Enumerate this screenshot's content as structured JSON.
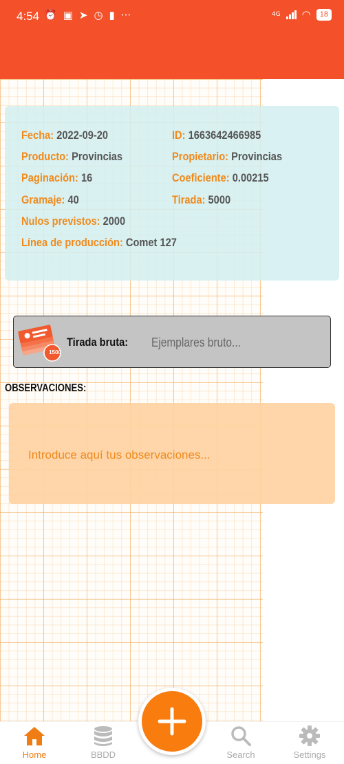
{
  "status_bar": {
    "time": "4:54",
    "network": "4G",
    "battery": "18"
  },
  "info": {
    "fecha": {
      "label": "Fecha:",
      "value": "2022-09-20"
    },
    "id": {
      "label": "ID:",
      "value": "1663642466985"
    },
    "producto": {
      "label": "Producto:",
      "value": "Provincias"
    },
    "propietario": {
      "label": "Propietario:",
      "value": "Provincias"
    },
    "paginacion": {
      "label": "Paginación:",
      "value": "16"
    },
    "coeficiente": {
      "label": "Coeficiente:",
      "value": "0.00215"
    },
    "gramaje": {
      "label": "Gramaje:",
      "value": "40"
    },
    "tirada": {
      "label": "Tirada:",
      "value": "5000"
    },
    "nulos": {
      "label": "Nulos previstos:",
      "value": "2000"
    },
    "linea": {
      "label": "Línea de producción:",
      "value": "Comet 127"
    }
  },
  "bruta": {
    "badge": "1500",
    "label": "Tirada bruta:",
    "placeholder": "Ejemplares bruto..."
  },
  "observaciones": {
    "title": "OBSERVACIONES:",
    "placeholder": "Introduce aquí tus observaciones..."
  },
  "nav": {
    "home": "Home",
    "bbdd": "BBDD",
    "search": "Search",
    "settings": "Settings"
  },
  "colors": {
    "appbar": "#f4502a",
    "accent": "#f97c0f",
    "label": "#f08a1c"
  }
}
